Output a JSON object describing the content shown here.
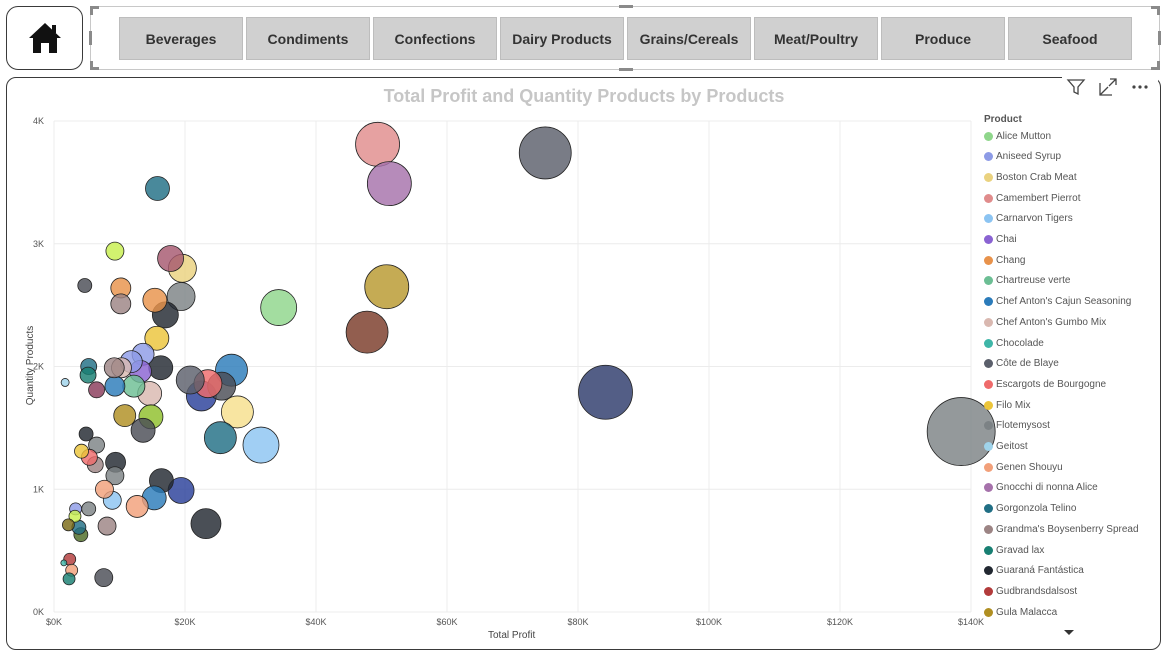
{
  "colors": {
    "nav_button_bg": "#d0d0d0",
    "title_color": "#c6c6c6",
    "grid": "#ececec"
  },
  "home": {
    "icon": "home-icon"
  },
  "categories": [
    "Beverages",
    "Condiments",
    "Confections",
    "Dairy Products",
    "Grains/Cereals",
    "Meat/Poultry",
    "Produce",
    "Seafood"
  ],
  "visual_header": {
    "icons": [
      "filter-icon",
      "focus-mode-icon",
      "more-options-icon"
    ]
  },
  "chart_data": {
    "type": "scatter",
    "title": "Total Profit and Quantity Products by Products",
    "xlabel": "Total Profit",
    "ylabel": "Quantity Products",
    "xlim": [
      0,
      140000
    ],
    "ylim": [
      0,
      4000
    ],
    "x_ticks": [
      "$0K",
      "$20K",
      "$40K",
      "$60K",
      "$80K",
      "$100K",
      "$120K",
      "$140K"
    ],
    "y_ticks": [
      "0K",
      "1K",
      "2K",
      "3K",
      "4K"
    ],
    "grid": true,
    "legend_position": "right",
    "legend_title": "Product",
    "legend": [
      {
        "name": "Alice Mutton",
        "color": "#8fd68b"
      },
      {
        "name": "Aniseed Syrup",
        "color": "#8d9be6"
      },
      {
        "name": "Boston Crab Meat",
        "color": "#ead27f"
      },
      {
        "name": "Camembert Pierrot",
        "color": "#e08c8c"
      },
      {
        "name": "Carnarvon Tigers",
        "color": "#8cc4f2"
      },
      {
        "name": "Chai",
        "color": "#8a63d2"
      },
      {
        "name": "Chang",
        "color": "#e8924b"
      },
      {
        "name": "Chartreuse verte",
        "color": "#6cbe94"
      },
      {
        "name": "Chef Anton's Cajun Seasoning",
        "color": "#2b7bba"
      },
      {
        "name": "Chef Anton's Gumbo Mix",
        "color": "#d9b8b0"
      },
      {
        "name": "Chocolade",
        "color": "#3fb6a8"
      },
      {
        "name": "Côte de Blaye",
        "color": "#5b5f6b"
      },
      {
        "name": "Escargots de Bourgogne",
        "color": "#ef6b6b"
      },
      {
        "name": "Filo Mix",
        "color": "#ecc53a"
      },
      {
        "name": "Flotemysost",
        "color": "#7c8285"
      },
      {
        "name": "Geitost",
        "color": "#9fd3ea"
      },
      {
        "name": "Genen Shouyu",
        "color": "#f2a07a"
      },
      {
        "name": "Gnocchi di nonna Alice",
        "color": "#a672ab"
      },
      {
        "name": "Gorgonzola Telino",
        "color": "#216f85"
      },
      {
        "name": "Grandma's Boysenberry Spread",
        "color": "#9c8484"
      },
      {
        "name": "Gravad lax",
        "color": "#187f72"
      },
      {
        "name": "Guaraná Fantástica",
        "color": "#222831"
      },
      {
        "name": "Gudbrandsdalsost",
        "color": "#b23b3b"
      },
      {
        "name": "Gula Malacca",
        "color": "#b08f22"
      }
    ],
    "points": [
      {
        "x": 138500,
        "y": 1470,
        "r": 34,
        "color": "#7c8285"
      },
      {
        "x": 84200,
        "y": 1790,
        "r": 27,
        "color": "#2d3a6b"
      },
      {
        "x": 75000,
        "y": 3740,
        "r": 26,
        "color": "#5b5f6b"
      },
      {
        "x": 50800,
        "y": 2650,
        "r": 22,
        "color": "#b8992e"
      },
      {
        "x": 49400,
        "y": 3810,
        "r": 22,
        "color": "#e08c8c"
      },
      {
        "x": 51200,
        "y": 3490,
        "r": 22,
        "color": "#a672ab"
      },
      {
        "x": 47800,
        "y": 2280,
        "r": 21,
        "color": "#7a3b28"
      },
      {
        "x": 34300,
        "y": 2480,
        "r": 18,
        "color": "#8fd68b"
      },
      {
        "x": 31600,
        "y": 1360,
        "r": 18,
        "color": "#8cc4f2"
      },
      {
        "x": 28000,
        "y": 1630,
        "r": 16,
        "color": "#f7df8c"
      },
      {
        "x": 27100,
        "y": 1970,
        "r": 16,
        "color": "#2b7bba"
      },
      {
        "x": 25400,
        "y": 1420,
        "r": 16,
        "color": "#216f85"
      },
      {
        "x": 23200,
        "y": 720,
        "r": 15,
        "color": "#222831"
      },
      {
        "x": 25600,
        "y": 1840,
        "r": 14,
        "color": "#4a4d55"
      },
      {
        "x": 23500,
        "y": 1860,
        "r": 14,
        "color": "#ef6b6b"
      },
      {
        "x": 22500,
        "y": 1760,
        "r": 15,
        "color": "#2a3f9a"
      },
      {
        "x": 20800,
        "y": 1890,
        "r": 14,
        "color": "#5b5f6b"
      },
      {
        "x": 19400,
        "y": 990,
        "r": 13,
        "color": "#2a3f9a"
      },
      {
        "x": 19600,
        "y": 2800,
        "r": 14,
        "color": "#ead27f"
      },
      {
        "x": 19400,
        "y": 2570,
        "r": 14,
        "color": "#7c8285"
      },
      {
        "x": 17800,
        "y": 2880,
        "r": 13,
        "color": "#a6586f"
      },
      {
        "x": 15800,
        "y": 3450,
        "r": 12,
        "color": "#216f85"
      },
      {
        "x": 17000,
        "y": 2420,
        "r": 13,
        "color": "#222831"
      },
      {
        "x": 15700,
        "y": 2230,
        "r": 12,
        "color": "#ecc53a"
      },
      {
        "x": 15400,
        "y": 2540,
        "r": 12,
        "color": "#e8924b"
      },
      {
        "x": 16300,
        "y": 1990,
        "r": 12,
        "color": "#222831"
      },
      {
        "x": 16400,
        "y": 1070,
        "r": 12,
        "color": "#222831"
      },
      {
        "x": 15300,
        "y": 930,
        "r": 12,
        "color": "#2b7bba"
      },
      {
        "x": 14600,
        "y": 1780,
        "r": 12,
        "color": "#d9b8b0"
      },
      {
        "x": 14800,
        "y": 1590,
        "r": 12,
        "color": "#8fbf2b"
      },
      {
        "x": 13600,
        "y": 1480,
        "r": 12,
        "color": "#4a4d55"
      },
      {
        "x": 13600,
        "y": 2100,
        "r": 11,
        "color": "#8d9be6"
      },
      {
        "x": 13200,
        "y": 1960,
        "r": 11,
        "color": "#8a63d2"
      },
      {
        "x": 12700,
        "y": 860,
        "r": 11,
        "color": "#f2a07a"
      },
      {
        "x": 12200,
        "y": 1840,
        "r": 11,
        "color": "#6cbe94"
      },
      {
        "x": 11800,
        "y": 2040,
        "r": 11,
        "color": "#8d9be6"
      },
      {
        "x": 10800,
        "y": 1600,
        "r": 11,
        "color": "#b08f22"
      },
      {
        "x": 10200,
        "y": 2640,
        "r": 10,
        "color": "#e8924b"
      },
      {
        "x": 10200,
        "y": 2510,
        "r": 10,
        "color": "#9c8484"
      },
      {
        "x": 10300,
        "y": 1990,
        "r": 10,
        "color": "#d9b8b0"
      },
      {
        "x": 9300,
        "y": 1840,
        "r": 10,
        "color": "#2b7bba"
      },
      {
        "x": 9400,
        "y": 1220,
        "r": 10,
        "color": "#222831"
      },
      {
        "x": 9300,
        "y": 1110,
        "r": 9,
        "color": "#7c8285"
      },
      {
        "x": 8900,
        "y": 910,
        "r": 9,
        "color": "#8cc4f2"
      },
      {
        "x": 9200,
        "y": 1990,
        "r": 10,
        "color": "#9c8484"
      },
      {
        "x": 9300,
        "y": 2940,
        "r": 9,
        "color": "#c8ef4f"
      },
      {
        "x": 7700,
        "y": 1000,
        "r": 9,
        "color": "#f2a07a"
      },
      {
        "x": 8100,
        "y": 700,
        "r": 9,
        "color": "#9c8484"
      },
      {
        "x": 7600,
        "y": 280,
        "r": 9,
        "color": "#4a4d55"
      },
      {
        "x": 6500,
        "y": 1810,
        "r": 8,
        "color": "#8a3b5a"
      },
      {
        "x": 6500,
        "y": 1360,
        "r": 8,
        "color": "#7c8285"
      },
      {
        "x": 6300,
        "y": 1200,
        "r": 8,
        "color": "#9c8484"
      },
      {
        "x": 5300,
        "y": 2000,
        "r": 8,
        "color": "#216f85"
      },
      {
        "x": 5200,
        "y": 1930,
        "r": 8,
        "color": "#187f72"
      },
      {
        "x": 5400,
        "y": 1260,
        "r": 8,
        "color": "#ef6b6b"
      },
      {
        "x": 4700,
        "y": 2660,
        "r": 7,
        "color": "#4a4d55"
      },
      {
        "x": 4900,
        "y": 1450,
        "r": 7,
        "color": "#222831"
      },
      {
        "x": 5300,
        "y": 840,
        "r": 7,
        "color": "#7c8285"
      },
      {
        "x": 4200,
        "y": 1310,
        "r": 7,
        "color": "#ecc53a"
      },
      {
        "x": 4100,
        "y": 630,
        "r": 7,
        "color": "#4d6b26"
      },
      {
        "x": 3800,
        "y": 690,
        "r": 7,
        "color": "#216f85"
      },
      {
        "x": 3300,
        "y": 840,
        "r": 6,
        "color": "#8d9be6"
      },
      {
        "x": 3200,
        "y": 780,
        "r": 6,
        "color": "#c8ef4f"
      },
      {
        "x": 2400,
        "y": 430,
        "r": 6,
        "color": "#b23b3b"
      },
      {
        "x": 2200,
        "y": 710,
        "r": 6,
        "color": "#7a6a16"
      },
      {
        "x": 2700,
        "y": 340,
        "r": 6,
        "color": "#f2a07a"
      },
      {
        "x": 2300,
        "y": 270,
        "r": 6,
        "color": "#187f72"
      },
      {
        "x": 1700,
        "y": 1870,
        "r": 4,
        "color": "#9fd3ea"
      },
      {
        "x": 1500,
        "y": 400,
        "r": 3,
        "color": "#3fb6a8"
      }
    ]
  }
}
